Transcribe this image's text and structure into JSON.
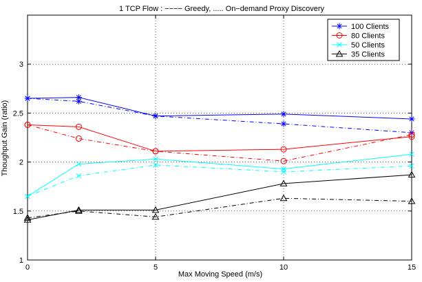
{
  "chart_data": {
    "type": "line",
    "title": "1 TCP Flow : −−−− Greedy,  ..... On−demand Proxy Discovery",
    "xlabel": "Max Moving Speed (m/s)",
    "ylabel": "Thoughput Gain (ratio)",
    "xlim": [
      0,
      15
    ],
    "ylim": [
      1,
      3.5
    ],
    "xticks": [
      "0",
      "5",
      "10",
      "15"
    ],
    "yticks": [
      "1",
      "1.5",
      "2",
      "2.5",
      "3"
    ],
    "grid": true,
    "legend_position": "top-right",
    "x": [
      0,
      2,
      5,
      10,
      15
    ],
    "series": [
      {
        "name": "100 Clients",
        "color": "#0000ff",
        "marker": "star",
        "greedy": [
          2.65,
          2.66,
          2.47,
          2.49,
          2.44
        ],
        "on_demand": [
          2.65,
          2.62,
          2.47,
          2.39,
          2.3
        ]
      },
      {
        "name": "80 Clients",
        "color": "#ff0000",
        "marker": "circle",
        "greedy": [
          2.38,
          2.36,
          2.11,
          2.13,
          2.26
        ],
        "on_demand": [
          2.38,
          2.24,
          2.11,
          2.01,
          2.28
        ]
      },
      {
        "name": "50 Clients",
        "color": "#00ffff",
        "marker": "x",
        "greedy": [
          1.65,
          1.98,
          2.03,
          1.93,
          2.08
        ],
        "on_demand": [
          1.65,
          1.86,
          1.97,
          1.9,
          1.96
        ]
      },
      {
        "name": "35 Clients",
        "color": "#000000",
        "marker": "triangle",
        "greedy": [
          1.41,
          1.51,
          1.51,
          1.78,
          1.87
        ],
        "on_demand": [
          1.43,
          1.5,
          1.44,
          1.63,
          1.6
        ]
      }
    ]
  }
}
